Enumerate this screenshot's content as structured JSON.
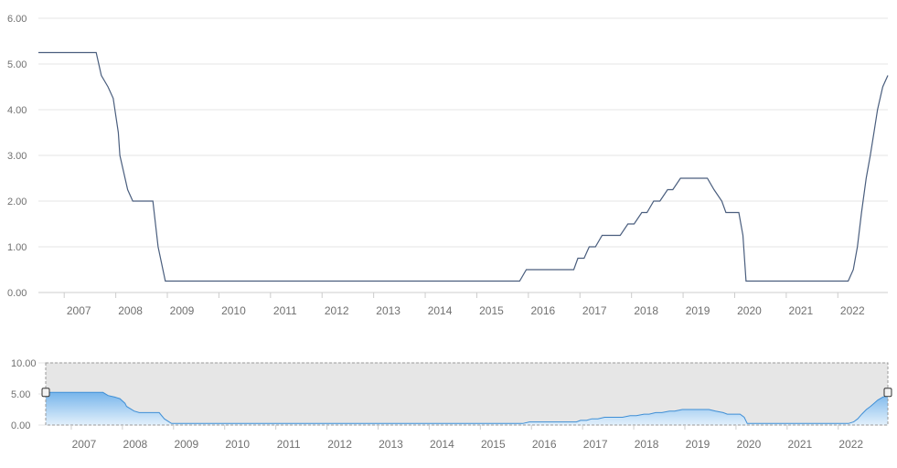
{
  "chart_data": {
    "type": "line",
    "main_ylim": [
      0,
      6
    ],
    "main_yticks": [
      "0.00",
      "1.00",
      "2.00",
      "3.00",
      "4.00",
      "5.00",
      "6.00"
    ],
    "navigator_ylim": [
      0,
      10
    ],
    "navigator_yticks": [
      "0.00",
      "5.00",
      "10.00"
    ],
    "xlim": [
      2006.5,
      2022.97
    ],
    "xticks": [
      "2007",
      "2008",
      "2009",
      "2010",
      "2011",
      "2012",
      "2013",
      "2014",
      "2015",
      "2016",
      "2017",
      "2018",
      "2019",
      "2020",
      "2021",
      "2022"
    ],
    "grid": true,
    "series": [
      {
        "points": [
          [
            2006.5,
            5.25
          ],
          [
            2007.62,
            5.25
          ],
          [
            2007.72,
            4.75
          ],
          [
            2007.85,
            4.5
          ],
          [
            2007.95,
            4.25
          ],
          [
            2008.05,
            3.5
          ],
          [
            2008.08,
            3.0
          ],
          [
            2008.23,
            2.25
          ],
          [
            2008.33,
            2.0
          ],
          [
            2008.72,
            2.0
          ],
          [
            2008.82,
            1.0
          ],
          [
            2008.96,
            0.25
          ],
          [
            2015.83,
            0.25
          ],
          [
            2015.96,
            0.5
          ],
          [
            2016.88,
            0.5
          ],
          [
            2016.96,
            0.75
          ],
          [
            2017.08,
            0.75
          ],
          [
            2017.18,
            1.0
          ],
          [
            2017.3,
            1.0
          ],
          [
            2017.43,
            1.25
          ],
          [
            2017.78,
            1.25
          ],
          [
            2017.93,
            1.5
          ],
          [
            2018.05,
            1.5
          ],
          [
            2018.2,
            1.75
          ],
          [
            2018.3,
            1.75
          ],
          [
            2018.43,
            2.0
          ],
          [
            2018.55,
            2.0
          ],
          [
            2018.7,
            2.25
          ],
          [
            2018.8,
            2.25
          ],
          [
            2018.95,
            2.5
          ],
          [
            2019.47,
            2.5
          ],
          [
            2019.6,
            2.25
          ],
          [
            2019.75,
            2.0
          ],
          [
            2019.83,
            1.75
          ],
          [
            2020.08,
            1.75
          ],
          [
            2020.16,
            1.25
          ],
          [
            2020.22,
            0.25
          ],
          [
            2022.2,
            0.25
          ],
          [
            2022.3,
            0.5
          ],
          [
            2022.38,
            1.0
          ],
          [
            2022.46,
            1.75
          ],
          [
            2022.55,
            2.5
          ],
          [
            2022.63,
            3.0
          ],
          [
            2022.7,
            3.5
          ],
          [
            2022.77,
            4.0
          ],
          [
            2022.87,
            4.5
          ],
          [
            2022.97,
            4.75
          ]
        ]
      }
    ]
  },
  "colors": {
    "main_line": "#4a5e7e",
    "grid": "#e6e6e6",
    "axis": "#cccccc",
    "tick_text": "#707070",
    "nav_mask": "#e6e6e6",
    "nav_outline": "#999999",
    "nav_line": "#3f8fd6",
    "nav_fill_top": "#77b5eb",
    "nav_fill_bottom": "#e3f0fb"
  }
}
